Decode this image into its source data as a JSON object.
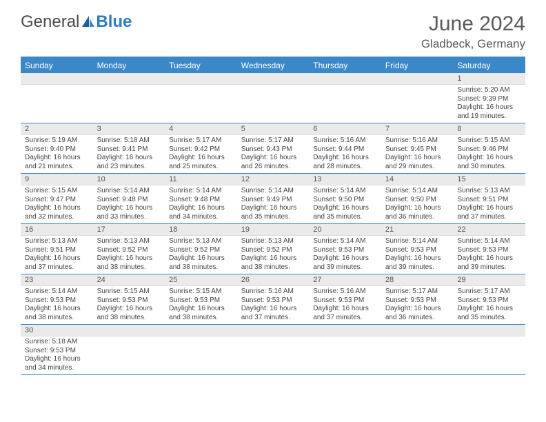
{
  "brand": {
    "part1": "General",
    "part2": "Blue"
  },
  "title": "June 2024",
  "location": "Gladbeck, Germany",
  "colors": {
    "header_bg": "#3b88c8",
    "stripe_bg": "#eaeaea",
    "row_border": "#3b88c8",
    "text": "#444444"
  },
  "day_names": [
    "Sunday",
    "Monday",
    "Tuesday",
    "Wednesday",
    "Thursday",
    "Friday",
    "Saturday"
  ],
  "weeks": [
    [
      null,
      null,
      null,
      null,
      null,
      null,
      {
        "n": "1",
        "sr": "Sunrise: 5:20 AM",
        "ss": "Sunset: 9:39 PM",
        "d1": "Daylight: 16 hours",
        "d2": "and 19 minutes."
      }
    ],
    [
      {
        "n": "2",
        "sr": "Sunrise: 5:19 AM",
        "ss": "Sunset: 9:40 PM",
        "d1": "Daylight: 16 hours",
        "d2": "and 21 minutes."
      },
      {
        "n": "3",
        "sr": "Sunrise: 5:18 AM",
        "ss": "Sunset: 9:41 PM",
        "d1": "Daylight: 16 hours",
        "d2": "and 23 minutes."
      },
      {
        "n": "4",
        "sr": "Sunrise: 5:17 AM",
        "ss": "Sunset: 9:42 PM",
        "d1": "Daylight: 16 hours",
        "d2": "and 25 minutes."
      },
      {
        "n": "5",
        "sr": "Sunrise: 5:17 AM",
        "ss": "Sunset: 9:43 PM",
        "d1": "Daylight: 16 hours",
        "d2": "and 26 minutes."
      },
      {
        "n": "6",
        "sr": "Sunrise: 5:16 AM",
        "ss": "Sunset: 9:44 PM",
        "d1": "Daylight: 16 hours",
        "d2": "and 28 minutes."
      },
      {
        "n": "7",
        "sr": "Sunrise: 5:16 AM",
        "ss": "Sunset: 9:45 PM",
        "d1": "Daylight: 16 hours",
        "d2": "and 29 minutes."
      },
      {
        "n": "8",
        "sr": "Sunrise: 5:15 AM",
        "ss": "Sunset: 9:46 PM",
        "d1": "Daylight: 16 hours",
        "d2": "and 30 minutes."
      }
    ],
    [
      {
        "n": "9",
        "sr": "Sunrise: 5:15 AM",
        "ss": "Sunset: 9:47 PM",
        "d1": "Daylight: 16 hours",
        "d2": "and 32 minutes."
      },
      {
        "n": "10",
        "sr": "Sunrise: 5:14 AM",
        "ss": "Sunset: 9:48 PM",
        "d1": "Daylight: 16 hours",
        "d2": "and 33 minutes."
      },
      {
        "n": "11",
        "sr": "Sunrise: 5:14 AM",
        "ss": "Sunset: 9:48 PM",
        "d1": "Daylight: 16 hours",
        "d2": "and 34 minutes."
      },
      {
        "n": "12",
        "sr": "Sunrise: 5:14 AM",
        "ss": "Sunset: 9:49 PM",
        "d1": "Daylight: 16 hours",
        "d2": "and 35 minutes."
      },
      {
        "n": "13",
        "sr": "Sunrise: 5:14 AM",
        "ss": "Sunset: 9:50 PM",
        "d1": "Daylight: 16 hours",
        "d2": "and 35 minutes."
      },
      {
        "n": "14",
        "sr": "Sunrise: 5:14 AM",
        "ss": "Sunset: 9:50 PM",
        "d1": "Daylight: 16 hours",
        "d2": "and 36 minutes."
      },
      {
        "n": "15",
        "sr": "Sunrise: 5:13 AM",
        "ss": "Sunset: 9:51 PM",
        "d1": "Daylight: 16 hours",
        "d2": "and 37 minutes."
      }
    ],
    [
      {
        "n": "16",
        "sr": "Sunrise: 5:13 AM",
        "ss": "Sunset: 9:51 PM",
        "d1": "Daylight: 16 hours",
        "d2": "and 37 minutes."
      },
      {
        "n": "17",
        "sr": "Sunrise: 5:13 AM",
        "ss": "Sunset: 9:52 PM",
        "d1": "Daylight: 16 hours",
        "d2": "and 38 minutes."
      },
      {
        "n": "18",
        "sr": "Sunrise: 5:13 AM",
        "ss": "Sunset: 9:52 PM",
        "d1": "Daylight: 16 hours",
        "d2": "and 38 minutes."
      },
      {
        "n": "19",
        "sr": "Sunrise: 5:13 AM",
        "ss": "Sunset: 9:52 PM",
        "d1": "Daylight: 16 hours",
        "d2": "and 38 minutes."
      },
      {
        "n": "20",
        "sr": "Sunrise: 5:14 AM",
        "ss": "Sunset: 9:53 PM",
        "d1": "Daylight: 16 hours",
        "d2": "and 39 minutes."
      },
      {
        "n": "21",
        "sr": "Sunrise: 5:14 AM",
        "ss": "Sunset: 9:53 PM",
        "d1": "Daylight: 16 hours",
        "d2": "and 39 minutes."
      },
      {
        "n": "22",
        "sr": "Sunrise: 5:14 AM",
        "ss": "Sunset: 9:53 PM",
        "d1": "Daylight: 16 hours",
        "d2": "and 39 minutes."
      }
    ],
    [
      {
        "n": "23",
        "sr": "Sunrise: 5:14 AM",
        "ss": "Sunset: 9:53 PM",
        "d1": "Daylight: 16 hours",
        "d2": "and 38 minutes."
      },
      {
        "n": "24",
        "sr": "Sunrise: 5:15 AM",
        "ss": "Sunset: 9:53 PM",
        "d1": "Daylight: 16 hours",
        "d2": "and 38 minutes."
      },
      {
        "n": "25",
        "sr": "Sunrise: 5:15 AM",
        "ss": "Sunset: 9:53 PM",
        "d1": "Daylight: 16 hours",
        "d2": "and 38 minutes."
      },
      {
        "n": "26",
        "sr": "Sunrise: 5:16 AM",
        "ss": "Sunset: 9:53 PM",
        "d1": "Daylight: 16 hours",
        "d2": "and 37 minutes."
      },
      {
        "n": "27",
        "sr": "Sunrise: 5:16 AM",
        "ss": "Sunset: 9:53 PM",
        "d1": "Daylight: 16 hours",
        "d2": "and 37 minutes."
      },
      {
        "n": "28",
        "sr": "Sunrise: 5:17 AM",
        "ss": "Sunset: 9:53 PM",
        "d1": "Daylight: 16 hours",
        "d2": "and 36 minutes."
      },
      {
        "n": "29",
        "sr": "Sunrise: 5:17 AM",
        "ss": "Sunset: 9:53 PM",
        "d1": "Daylight: 16 hours",
        "d2": "and 35 minutes."
      }
    ],
    [
      {
        "n": "30",
        "sr": "Sunrise: 5:18 AM",
        "ss": "Sunset: 9:53 PM",
        "d1": "Daylight: 16 hours",
        "d2": "and 34 minutes."
      },
      null,
      null,
      null,
      null,
      null,
      null
    ]
  ]
}
